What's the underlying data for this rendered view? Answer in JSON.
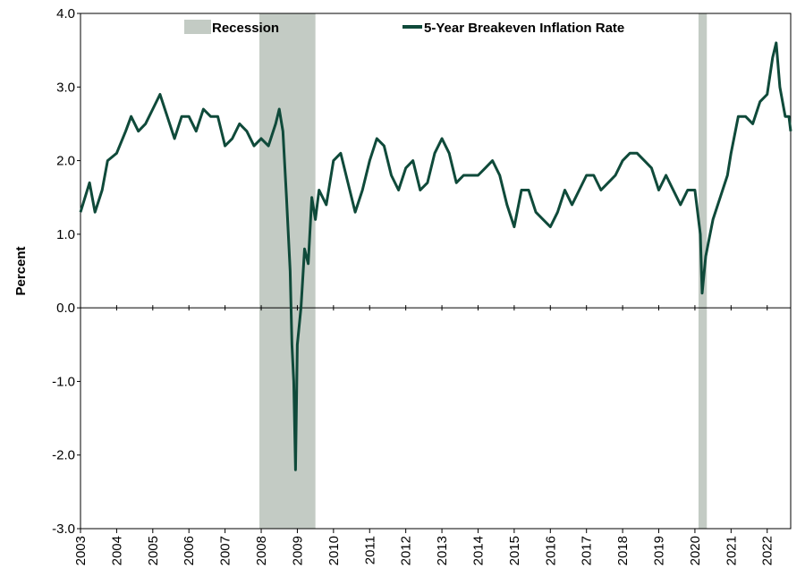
{
  "chart_data": {
    "type": "line",
    "y_label": "Percent",
    "legend_position": "top",
    "shading": {
      "name": "Recession",
      "color": "#c3cbc4",
      "ranges": [
        [
          2007.95,
          2009.5
        ],
        [
          2020.1,
          2020.33
        ]
      ]
    },
    "series": [
      {
        "name": "5-Year Breakeven Inflation Rate",
        "color": "#0f4a3a",
        "x": [
          2003.0,
          2003.25,
          2003.4,
          2003.6,
          2003.75,
          2004.0,
          2004.25,
          2004.4,
          2004.6,
          2004.8,
          2005.0,
          2005.2,
          2005.4,
          2005.6,
          2005.8,
          2006.0,
          2006.2,
          2006.4,
          2006.6,
          2006.8,
          2007.0,
          2007.2,
          2007.4,
          2007.6,
          2007.8,
          2008.0,
          2008.2,
          2008.4,
          2008.5,
          2008.6,
          2008.7,
          2008.8,
          2008.85,
          2008.9,
          2008.95,
          2009.0,
          2009.1,
          2009.2,
          2009.3,
          2009.4,
          2009.5,
          2009.6,
          2009.8,
          2010.0,
          2010.2,
          2010.4,
          2010.6,
          2010.8,
          2011.0,
          2011.2,
          2011.4,
          2011.6,
          2011.8,
          2012.0,
          2012.2,
          2012.4,
          2012.6,
          2012.8,
          2013.0,
          2013.2,
          2013.4,
          2013.6,
          2013.8,
          2014.0,
          2014.2,
          2014.4,
          2014.6,
          2014.8,
          2015.0,
          2015.2,
          2015.4,
          2015.6,
          2015.8,
          2016.0,
          2016.2,
          2016.4,
          2016.6,
          2016.8,
          2017.0,
          2017.2,
          2017.4,
          2017.6,
          2017.8,
          2018.0,
          2018.2,
          2018.4,
          2018.6,
          2018.8,
          2019.0,
          2019.2,
          2019.4,
          2019.6,
          2019.8,
          2020.0,
          2020.15,
          2020.2,
          2020.3,
          2020.5,
          2020.7,
          2020.9,
          2021.0,
          2021.2,
          2021.4,
          2021.6,
          2021.8,
          2022.0,
          2022.15,
          2022.25,
          2022.35,
          2022.5,
          2022.6,
          2022.65
        ],
        "values": [
          1.3,
          1.7,
          1.3,
          1.6,
          2.0,
          2.1,
          2.4,
          2.6,
          2.4,
          2.5,
          2.7,
          2.9,
          2.6,
          2.3,
          2.6,
          2.6,
          2.4,
          2.7,
          2.6,
          2.6,
          2.2,
          2.3,
          2.5,
          2.4,
          2.2,
          2.3,
          2.2,
          2.5,
          2.7,
          2.4,
          1.5,
          0.5,
          -0.5,
          -1.0,
          -2.2,
          -0.5,
          0.0,
          0.8,
          0.6,
          1.5,
          1.2,
          1.6,
          1.4,
          2.0,
          2.1,
          1.7,
          1.3,
          1.6,
          2.0,
          2.3,
          2.2,
          1.8,
          1.6,
          1.9,
          2.0,
          1.6,
          1.7,
          2.1,
          2.3,
          2.1,
          1.7,
          1.8,
          1.8,
          1.8,
          1.9,
          2.0,
          1.8,
          1.4,
          1.1,
          1.6,
          1.6,
          1.3,
          1.2,
          1.1,
          1.3,
          1.6,
          1.4,
          1.6,
          1.8,
          1.8,
          1.6,
          1.7,
          1.8,
          2.0,
          2.1,
          2.1,
          2.0,
          1.9,
          1.6,
          1.8,
          1.6,
          1.4,
          1.6,
          1.6,
          1.0,
          0.2,
          0.7,
          1.2,
          1.5,
          1.8,
          2.1,
          2.6,
          2.6,
          2.5,
          2.8,
          2.9,
          3.4,
          3.6,
          3.0,
          2.6,
          2.6,
          2.4
        ]
      }
    ],
    "xlim": [
      2003,
      2022.65
    ],
    "xticks": [
      2003,
      2004,
      2005,
      2006,
      2007,
      2008,
      2009,
      2010,
      2011,
      2012,
      2013,
      2014,
      2015,
      2016,
      2017,
      2018,
      2019,
      2020,
      2021,
      2022
    ],
    "ylim": [
      -3,
      4
    ],
    "yticks": [
      {
        "value": -3,
        "label": "-3.0"
      },
      {
        "value": -2,
        "label": "-2.0"
      },
      {
        "value": -1,
        "label": "-1.0"
      },
      {
        "value": 0,
        "label": "0.0"
      },
      {
        "value": 1,
        "label": "1.0"
      },
      {
        "value": 2,
        "label": "2.0"
      },
      {
        "value": 3,
        "label": "3.0"
      },
      {
        "value": 4,
        "label": "4.0"
      }
    ]
  }
}
